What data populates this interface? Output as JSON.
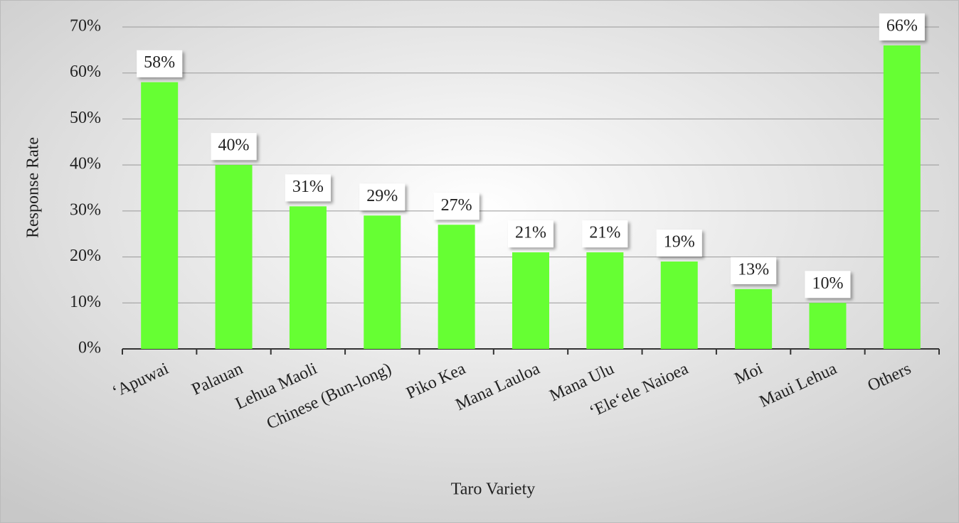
{
  "chart_data": {
    "type": "bar",
    "x_label": "Taro Variety",
    "y_label": "Response Rate",
    "categories": [
      "‘Apuwai",
      "Palauan",
      "Lehua Maoli",
      "Chinese (Bun-long)",
      "Piko Kea",
      "Mana Lauloa",
      "Mana Ulu",
      "‘Ele‘ele Naioea",
      "Moi",
      "Maui Lehua",
      "Others"
    ],
    "values": [
      58,
      40,
      31,
      29,
      27,
      21,
      21,
      19,
      13,
      10,
      66
    ],
    "value_labels": [
      "58%",
      "40%",
      "31%",
      "29%",
      "27%",
      "21%",
      "21%",
      "19%",
      "13%",
      "10%",
      "66%"
    ],
    "color": "#66ff33",
    "ylim": [
      0,
      70
    ],
    "yticks": [
      {
        "value": 0,
        "label": "0%"
      },
      {
        "value": 10,
        "label": "10%"
      },
      {
        "value": 20,
        "label": "20%"
      },
      {
        "value": 30,
        "label": "30%"
      },
      {
        "value": 40,
        "label": "40%"
      },
      {
        "value": 50,
        "label": "50%"
      },
      {
        "value": 60,
        "label": "60%"
      },
      {
        "value": 70,
        "label": "70%"
      }
    ],
    "grid": true
  }
}
